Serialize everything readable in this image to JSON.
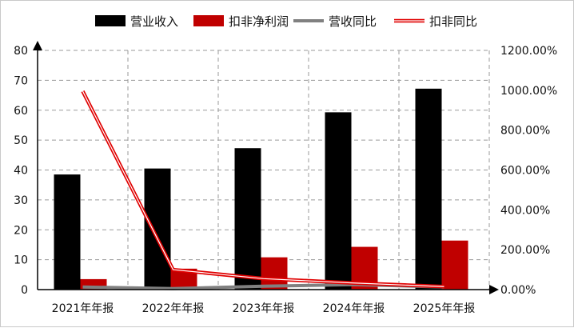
{
  "chart_data": {
    "type": "bar",
    "title": "",
    "categories": [
      "2021年年报",
      "2022年年报",
      "2023年年报",
      "2024年年报",
      "2025年年报"
    ],
    "series": [
      {
        "name": "营业收入",
        "kind": "bar",
        "axis": "left",
        "color": "#000000",
        "values": [
          38.5,
          40.5,
          47.3,
          59.3,
          67.2
        ]
      },
      {
        "name": "扣非净利润",
        "kind": "bar",
        "axis": "left",
        "color": "#c00000",
        "values": [
          3.5,
          7.0,
          10.8,
          14.3,
          16.4
        ]
      },
      {
        "name": "营收同比",
        "kind": "line",
        "axis": "right",
        "color": "#808080",
        "values": [
          13,
          5,
          17,
          25,
          13
        ]
      },
      {
        "name": "扣非同比",
        "kind": "line",
        "axis": "right",
        "color": "#e00000",
        "values": [
          995,
          100,
          55,
          33,
          15
        ]
      }
    ],
    "y_left": {
      "min": 0,
      "max": 80,
      "ticks": [
        "0",
        "10",
        "20",
        "30",
        "40",
        "50",
        "60",
        "70",
        "80"
      ]
    },
    "y_right": {
      "min": 0,
      "max": 1200,
      "ticks": [
        "0.00%",
        "200.00%",
        "400.00%",
        "600.00%",
        "800.00%",
        "1000.00%",
        "1200.00%"
      ]
    },
    "grid": true,
    "legend_position": "top"
  }
}
